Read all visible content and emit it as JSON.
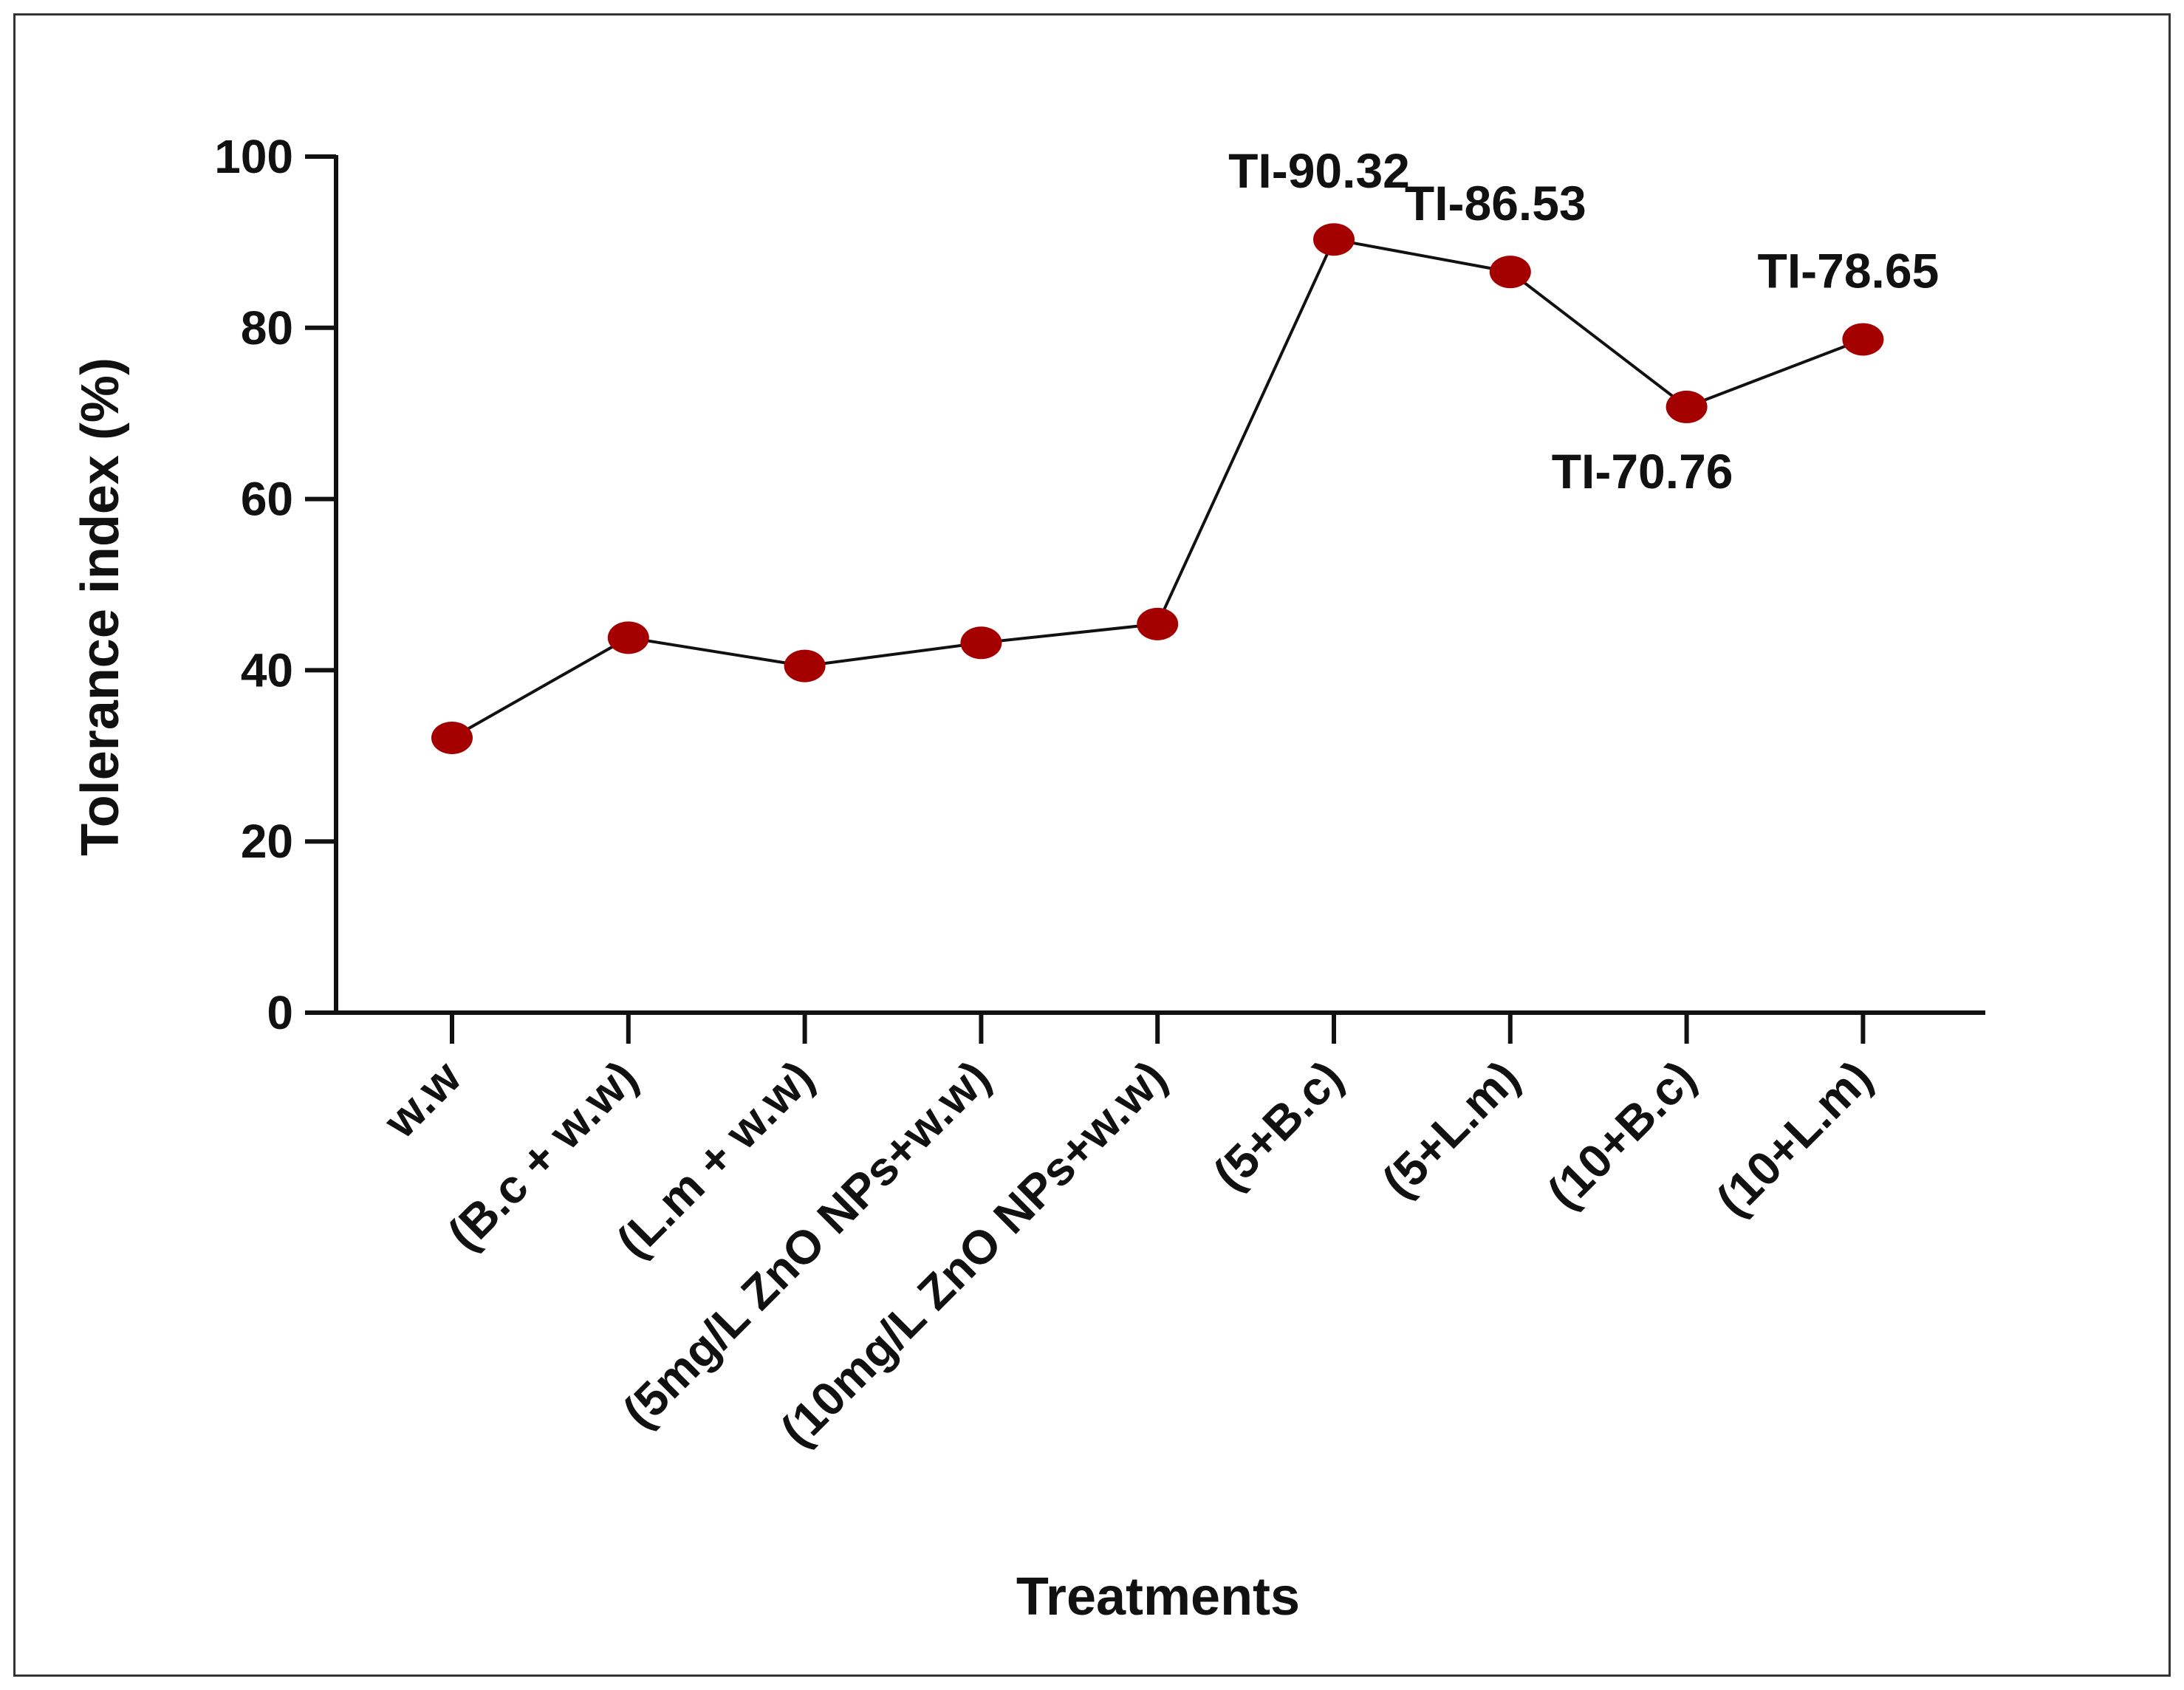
{
  "chart_data": {
    "type": "line",
    "title": "",
    "xlabel": "Treatments",
    "ylabel": "Tolerance index (%)",
    "ylim": [
      0,
      100
    ],
    "yticks": [
      0,
      20,
      40,
      60,
      80,
      100
    ],
    "categories": [
      "w.w",
      "(B.c + w.w)",
      "(L.m + w.w)",
      "(5mg/L ZnO NPs+w.w)",
      "(10mg/L ZnO NPs+w.w)",
      "(5+B.c)",
      "(5+L.m)",
      "(10+B.c)",
      "(10+L.m)"
    ],
    "series": [
      {
        "name": "Tolerance index",
        "values": [
          32.1,
          43.8,
          40.5,
          43.2,
          45.4,
          90.32,
          86.53,
          70.76,
          78.65
        ]
      }
    ],
    "annotations": [
      {
        "index": 5,
        "text": "TI-90.32",
        "position": "above"
      },
      {
        "index": 6,
        "text": "TI-86.53",
        "position": "above"
      },
      {
        "index": 7,
        "text": "TI-70.76",
        "position": "below"
      },
      {
        "index": 8,
        "text": "TI-78.65",
        "position": "above"
      }
    ],
    "colors": {
      "marker": "#a50000",
      "line": "#111111",
      "axis": "#111111"
    },
    "grid": false
  }
}
